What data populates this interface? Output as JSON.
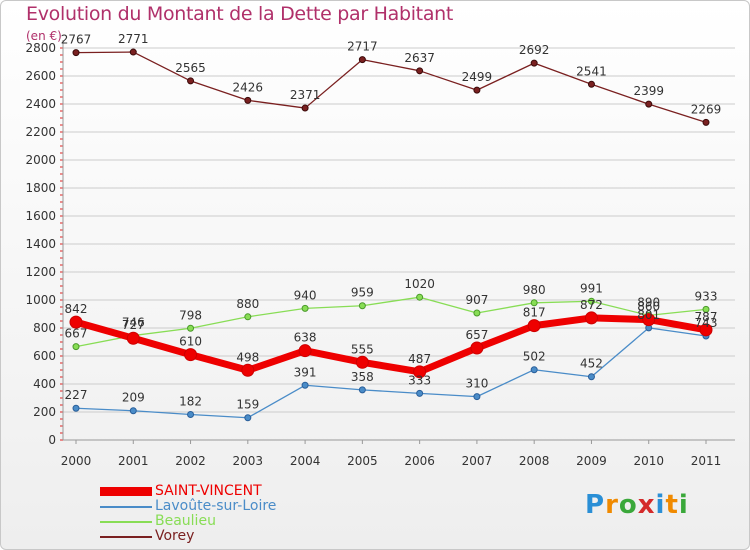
{
  "chart_data": {
    "type": "line",
    "title": "Evolution du Montant de la Dette par Habitant",
    "subtitle": "(en €)",
    "categories": [
      "2000",
      "2001",
      "2002",
      "2003",
      "2004",
      "2005",
      "2006",
      "2007",
      "2008",
      "2009",
      "2010",
      "2011"
    ],
    "ylim": [
      0,
      2800
    ],
    "yticks": [
      0,
      200,
      400,
      600,
      800,
      1000,
      1200,
      1400,
      1600,
      1800,
      2000,
      2200,
      2400,
      2600,
      2800
    ],
    "grid": "horizontal",
    "legend_position": "bottom-left",
    "series": [
      {
        "name": "SAINT-VINCENT",
        "color": "#ee0000",
        "values": [
          842,
          727,
          610,
          498,
          638,
          555,
          487,
          657,
          817,
          872,
          860,
          787
        ],
        "labels": [
          "842",
          "727",
          "610",
          "498",
          "638",
          "555",
          "487",
          "657",
          "817",
          "872",
          "860",
          "787"
        ]
      },
      {
        "name": "Lavoûte-sur-Loire",
        "color": "#4a8cc8",
        "values": [
          227,
          209,
          182,
          159,
          391,
          358,
          333,
          310,
          502,
          452,
          801,
          743
        ],
        "labels": [
          "227",
          "209",
          "182",
          "159",
          "391",
          "358",
          "333",
          "310",
          "502",
          "452",
          "801",
          "743"
        ]
      },
      {
        "name": "Beaulieu",
        "color": "#88dd55",
        "values": [
          667,
          746,
          798,
          880,
          940,
          959,
          1020,
          907,
          980,
          991,
          890,
          933
        ],
        "labels": [
          "667",
          "746",
          "798",
          "880",
          "940",
          "959",
          "1020",
          "907",
          "980",
          "991",
          "890",
          "933"
        ]
      },
      {
        "name": "Vorey",
        "color": "#7a2020",
        "values": [
          2767,
          2771,
          2565,
          2426,
          2371,
          2717,
          2637,
          2499,
          2692,
          2541,
          2399,
          2269
        ],
        "labels": [
          "2767",
          "2771",
          "2565",
          "2426",
          "2371",
          "2717",
          "2637",
          "2499",
          "2692",
          "2541",
          "2399",
          "2269"
        ]
      }
    ]
  },
  "logo": {
    "text": "Proxiti",
    "letters": [
      "P",
      "r",
      "o",
      "x",
      "i",
      "t",
      "i"
    ],
    "colors": [
      "#2a8fd6",
      "#f08a00",
      "#3aa83a",
      "#d42a2a",
      "#2a8fd6",
      "#f08a00",
      "#3aa83a"
    ]
  }
}
